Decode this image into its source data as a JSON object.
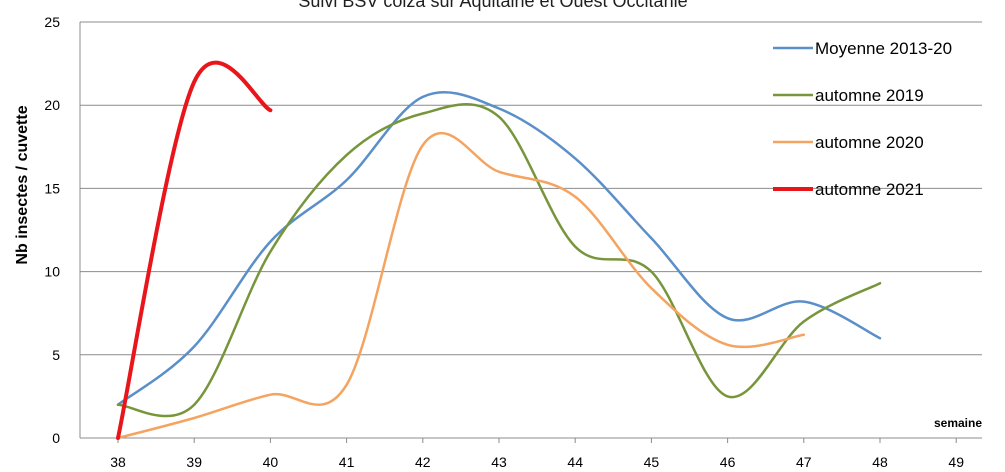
{
  "chart_data": {
    "type": "line",
    "title": "Suivi BSV colza sur Aquitaine et Ouest Occitanie",
    "ylabel": "Nb insectes / cuvette",
    "xlabel": "semaine",
    "x": [
      38,
      39,
      40,
      41,
      42,
      43,
      44,
      45,
      46,
      47,
      48,
      49
    ],
    "y_ticks": [
      0,
      5,
      10,
      15,
      20,
      25
    ],
    "ylim": [
      0,
      25
    ],
    "grid": true,
    "legend_position": "right",
    "series": [
      {
        "name": "Moyenne 2013-20",
        "color": "#5b8fc9",
        "points": [
          [
            38,
            2.0
          ],
          [
            39,
            5.5
          ],
          [
            40,
            11.8
          ],
          [
            41,
            15.5
          ],
          [
            42,
            20.5
          ],
          [
            43,
            19.8
          ],
          [
            44,
            16.8
          ],
          [
            45,
            12.0
          ],
          [
            46,
            7.2
          ],
          [
            47,
            8.2
          ],
          [
            48,
            6.0
          ]
        ]
      },
      {
        "name": "automne 2019",
        "color": "#77963b",
        "points": [
          [
            38,
            2.0
          ],
          [
            39,
            2.0
          ],
          [
            40,
            11.2
          ],
          [
            41,
            17.0
          ],
          [
            42,
            19.5
          ],
          [
            43,
            19.3
          ],
          [
            44,
            11.5
          ],
          [
            45,
            10.0
          ],
          [
            46,
            2.5
          ],
          [
            47,
            7.0
          ],
          [
            48,
            9.3
          ]
        ]
      },
      {
        "name": "automne 2020",
        "color": "#f4a460",
        "points": [
          [
            38,
            0.0
          ],
          [
            39,
            1.2
          ],
          [
            40,
            2.6
          ],
          [
            41,
            3.2
          ],
          [
            42,
            17.6
          ],
          [
            43,
            16.0
          ],
          [
            44,
            14.5
          ],
          [
            45,
            9.0
          ],
          [
            46,
            5.6
          ],
          [
            47,
            6.2
          ]
        ]
      },
      {
        "name": "automne 2021",
        "color": "#e8161b",
        "points": [
          [
            38,
            0.0
          ],
          [
            39,
            21.4
          ],
          [
            40,
            19.7
          ]
        ]
      }
    ]
  }
}
